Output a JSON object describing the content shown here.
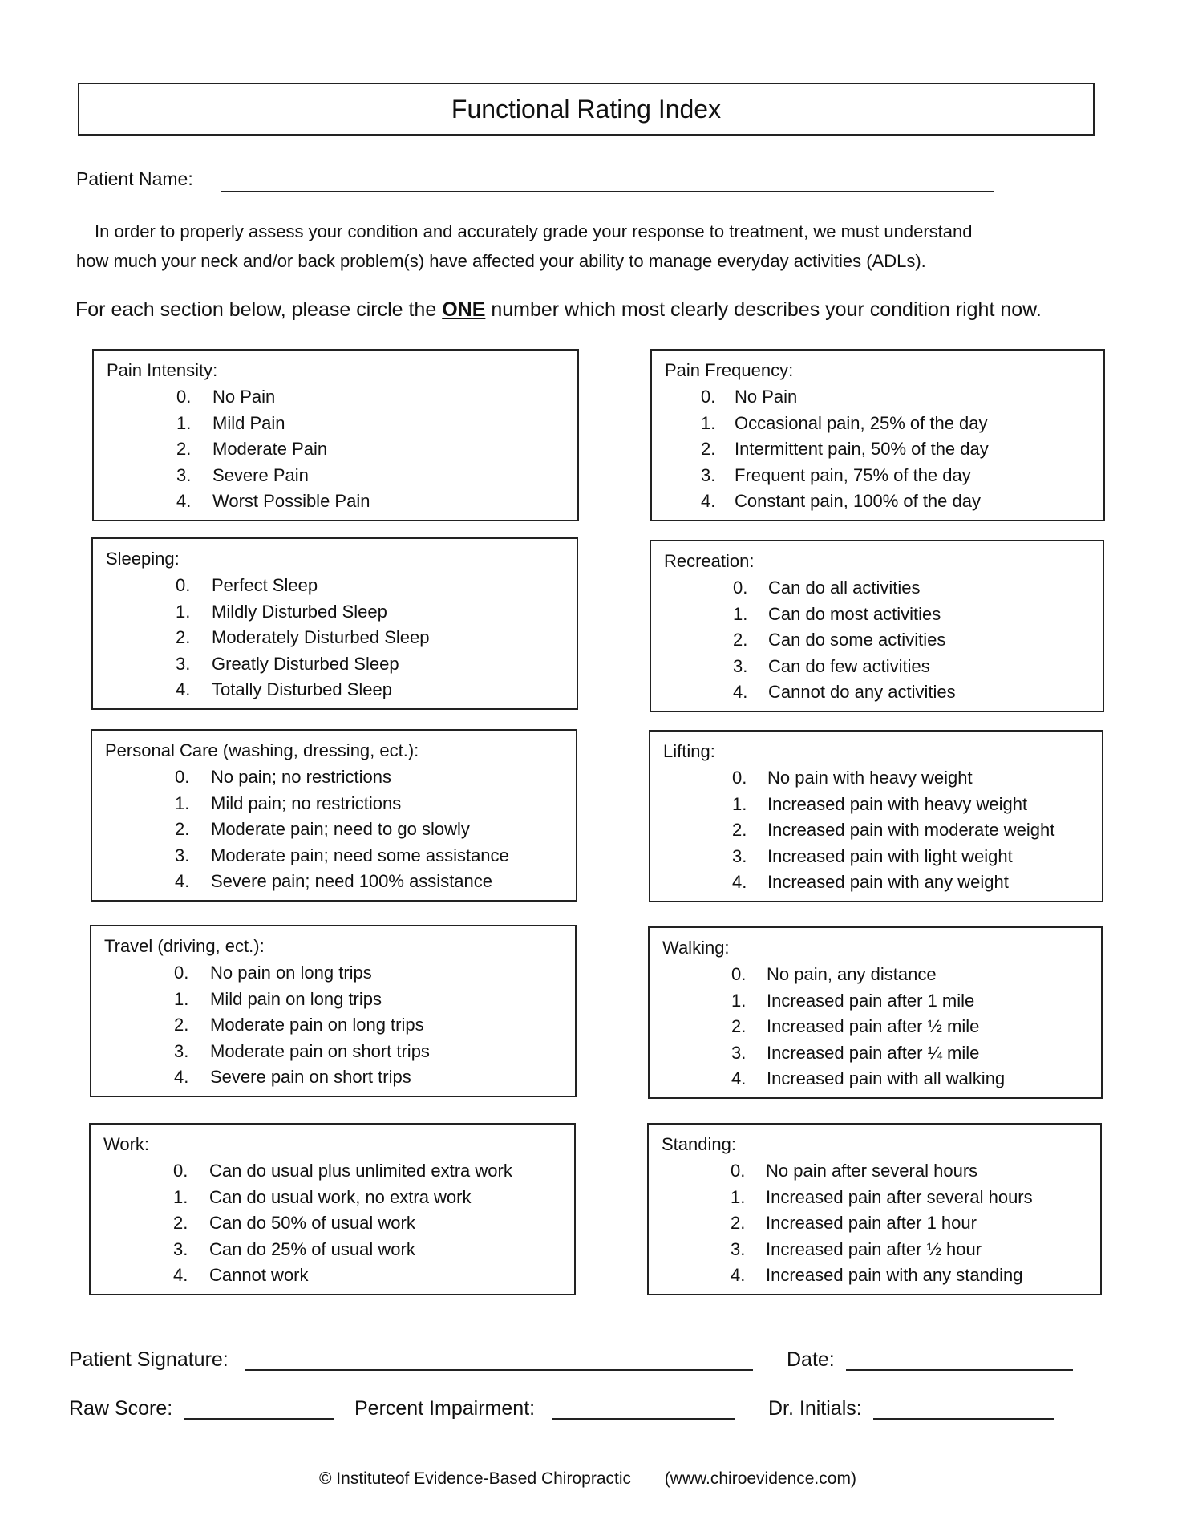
{
  "title": "Functional Rating Index",
  "patient_name_label": "Patient Name:",
  "intro_line1": "In order to properly assess your condition and accurately grade your response to treatment, we must understand",
  "intro_line2": "how much your neck and/or back problem(s) have affected your ability to manage everyday activities (ADLs).",
  "instruction": {
    "before": "For each section below, please circle the ",
    "emphasis": "ONE",
    "after": " number which most clearly describes your condition right now."
  },
  "sections": [
    {
      "title": "Pain Intensity:",
      "items": [
        [
          "0.",
          "No Pain"
        ],
        [
          "1.",
          "Mild Pain"
        ],
        [
          "2.",
          "Moderate Pain"
        ],
        [
          "3.",
          "Severe Pain"
        ],
        [
          "4.",
          "Worst Possible Pain"
        ]
      ]
    },
    {
      "title": "Pain Frequency:",
      "items": [
        [
          "0.",
          "No Pain"
        ],
        [
          "1.",
          "Occasional pain, 25% of the day"
        ],
        [
          "2.",
          "Intermittent pain, 50% of the day"
        ],
        [
          "3.",
          "Frequent pain, 75% of the day"
        ],
        [
          "4.",
          "Constant pain, 100% of the day"
        ]
      ]
    },
    {
      "title": "Sleeping:",
      "items": [
        [
          "0.",
          "Perfect Sleep"
        ],
        [
          "1.",
          "Mildly Disturbed Sleep"
        ],
        [
          "2.",
          "Moderately Disturbed Sleep"
        ],
        [
          "3.",
          "Greatly Disturbed Sleep"
        ],
        [
          "4.",
          "Totally Disturbed Sleep"
        ]
      ]
    },
    {
      "title": "Recreation:",
      "items": [
        [
          "0.",
          "Can do all activities"
        ],
        [
          "1.",
          "Can do most activities"
        ],
        [
          "2.",
          "Can do some activities"
        ],
        [
          "3.",
          "Can do few activities"
        ],
        [
          "4.",
          "Cannot do any activities"
        ]
      ]
    },
    {
      "title": "Personal Care (washing, dressing, ect.):",
      "items": [
        [
          "0.",
          "No pain; no restrictions"
        ],
        [
          "1.",
          "Mild pain; no restrictions"
        ],
        [
          "2.",
          "Moderate pain; need to go slowly"
        ],
        [
          "3.",
          "Moderate pain; need some assistance"
        ],
        [
          "4.",
          "Severe pain; need 100% assistance"
        ]
      ]
    },
    {
      "title": "Lifting:",
      "items": [
        [
          "0.",
          "No pain with heavy weight"
        ],
        [
          "1.",
          "Increased pain with heavy weight"
        ],
        [
          "2.",
          "Increased pain with moderate weight"
        ],
        [
          "3.",
          "Increased pain with light weight"
        ],
        [
          "4.",
          "Increased pain with any weight"
        ]
      ]
    },
    {
      "title": "Travel (driving, ect.):",
      "items": [
        [
          "0.",
          "No pain on long trips"
        ],
        [
          "1.",
          "Mild pain on long trips"
        ],
        [
          "2.",
          "Moderate pain on long trips"
        ],
        [
          "3.",
          "Moderate pain on short trips"
        ],
        [
          "4.",
          "Severe pain on short trips"
        ]
      ]
    },
    {
      "title": "Walking:",
      "items": [
        [
          "0.",
          "No pain, any distance"
        ],
        [
          "1.",
          "Increased pain after 1 mile"
        ],
        [
          "2.",
          "Increased pain after ½ mile"
        ],
        [
          "3.",
          "Increased pain after ¼ mile"
        ],
        [
          "4.",
          "Increased pain with all walking"
        ]
      ]
    },
    {
      "title": "Work:",
      "items": [
        [
          "0.",
          "Can do usual plus unlimited extra work"
        ],
        [
          "1.",
          "Can do usual work, no extra work"
        ],
        [
          "2.",
          "Can do 50% of usual work"
        ],
        [
          "3.",
          "Can do 25% of usual work"
        ],
        [
          "4.",
          "Cannot work"
        ]
      ]
    },
    {
      "title": "Standing:",
      "items": [
        [
          "0.",
          "No pain after several hours"
        ],
        [
          "1.",
          "Increased pain after several hours"
        ],
        [
          "2.",
          "Increased pain after 1 hour"
        ],
        [
          "3.",
          "Increased pain after ½ hour"
        ],
        [
          "4.",
          "Increased pain with any standing"
        ]
      ]
    }
  ],
  "signature_label": "Patient Signature:",
  "date_label": "Date:",
  "raw_score_label": "Raw Score:",
  "percent_impairment_label": "Percent Impairment:",
  "dr_initials_label": "Dr. Initials:",
  "footer": {
    "copyright": "©  Instituteof Evidence-Based Chiropractic",
    "website": "(www.chiroevidence.com)"
  }
}
